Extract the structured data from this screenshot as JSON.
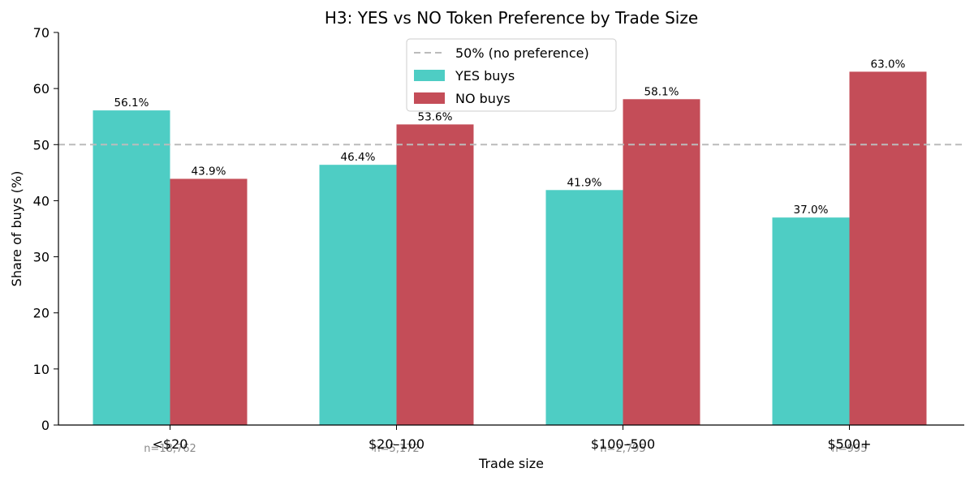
{
  "chart_data": {
    "type": "bar",
    "title": "H3: YES vs NO Token Preference by Trade Size",
    "xlabel": "Trade size",
    "ylabel": "Share of buys (%)",
    "ylim": [
      0,
      70
    ],
    "yticks": [
      0,
      10,
      20,
      30,
      40,
      50,
      60,
      70
    ],
    "categories": [
      "<$20",
      "$20–100",
      "$100–500",
      "$500+"
    ],
    "sample_sizes": [
      "n=18,762",
      "n=5,172",
      "n=2,795",
      "n=995"
    ],
    "series": [
      {
        "name": "YES buys",
        "color": "#4ecdc4",
        "values": [
          56.1,
          46.4,
          41.9,
          37.0
        ],
        "labels": [
          "56.1%",
          "46.4%",
          "41.9%",
          "37.0%"
        ]
      },
      {
        "name": "NO buys",
        "color": "#c44d58",
        "values": [
          43.9,
          53.6,
          58.1,
          63.0
        ],
        "labels": [
          "43.9%",
          "53.6%",
          "58.1%",
          "63.0%"
        ]
      }
    ],
    "reference_line": {
      "label": "50% (no preference)",
      "value": 50,
      "color": "#bbbbbb",
      "style": "dashed"
    },
    "legend_position": "top-center",
    "grid": false
  }
}
